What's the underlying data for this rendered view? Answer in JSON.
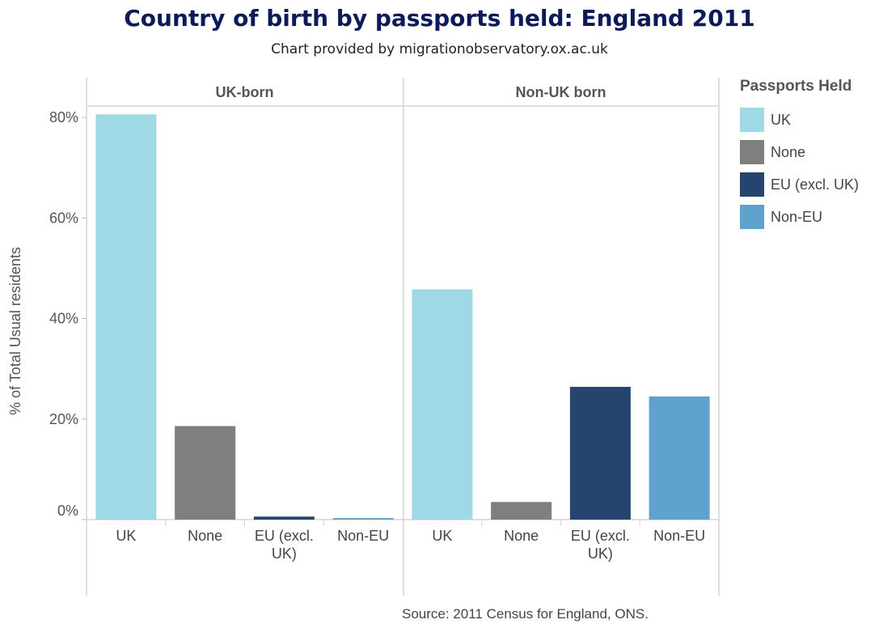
{
  "chart_data": {
    "type": "bar",
    "title": "Country of birth by passports held: England 2011",
    "subtitle": "Chart provided by migrationobservatory.ox.ac.uk",
    "ylabel": "% of Total Usual residents",
    "ylim": [
      0,
      80
    ],
    "yticks": [
      0,
      20,
      40,
      60,
      80
    ],
    "ytick_labels": [
      "0%",
      "20%",
      "40%",
      "60%",
      "80%"
    ],
    "grid": false,
    "legend_title": "Passports Held",
    "legend_position": "right",
    "categories": [
      "UK",
      "None",
      "EU (excl. UK)",
      "Non-EU"
    ],
    "category_colors": [
      "#a0d9e6",
      "#7f7f7f",
      "#26456e",
      "#5fa2ce"
    ],
    "panels": [
      {
        "name": "UK-born",
        "values": [
          80.6,
          18.6,
          0.6,
          0.3
        ]
      },
      {
        "name": "Non-UK born",
        "values": [
          45.8,
          3.5,
          26.4,
          24.5
        ]
      }
    ],
    "source": "Source: 2011 Census for England, ONS."
  }
}
